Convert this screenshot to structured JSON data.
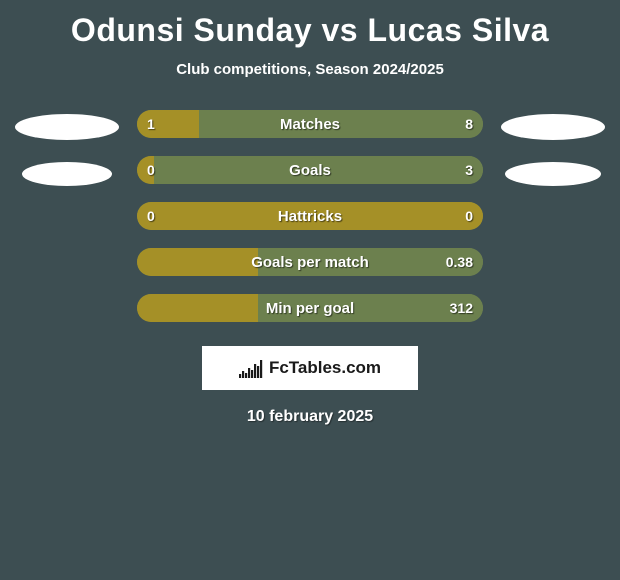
{
  "title": "Odunsi Sunday vs Lucas Silva",
  "subtitle": "Club competitions, Season 2024/2025",
  "colors": {
    "background": "#3d4e52",
    "left_fill": "#a59027",
    "right_fill": "#6c804e",
    "text": "#ffffff",
    "avatar": "#ffffff",
    "brand_box_bg": "#ffffff",
    "brand_text": "#1a1a1a"
  },
  "stats": [
    {
      "label": "Matches",
      "left_val": "1",
      "right_val": "8",
      "left_pct": 18,
      "right_pct": 82
    },
    {
      "label": "Goals",
      "left_val": "0",
      "right_val": "3",
      "left_pct": 5,
      "right_pct": 95
    },
    {
      "label": "Hattricks",
      "left_val": "0",
      "right_val": "0",
      "left_pct": 100,
      "right_pct": 0
    },
    {
      "label": "Goals per match",
      "left_val": "",
      "right_val": "0.38",
      "left_pct": 35,
      "right_pct": 65
    },
    {
      "label": "Min per goal",
      "left_val": "",
      "right_val": "312",
      "left_pct": 35,
      "right_pct": 65
    }
  ],
  "brand": "FcTables.com",
  "date": "10 february 2025",
  "logo_bars": [
    4,
    7,
    5,
    10,
    8,
    14,
    12,
    18
  ]
}
